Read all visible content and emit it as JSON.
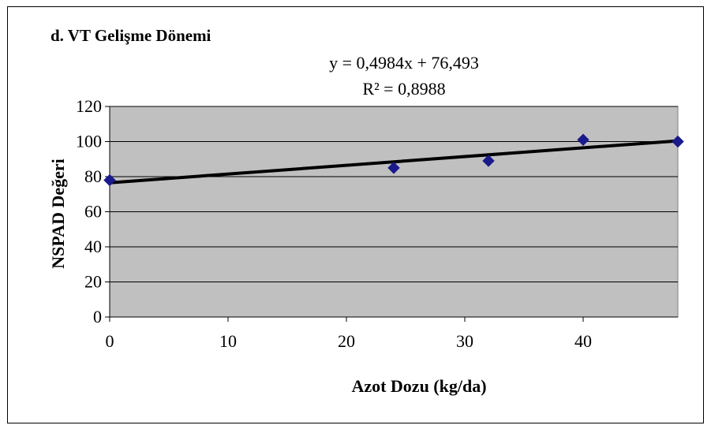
{
  "chart_data": {
    "type": "scatter",
    "title": "d. VT Gelişme Dönemi",
    "xlabel": "Azot Dozu (kg/da)",
    "ylabel": "NSPAD Değeri",
    "xlim": [
      0,
      48
    ],
    "ylim": [
      0,
      120
    ],
    "x_ticks": [
      "0",
      "10",
      "20",
      "30",
      "40"
    ],
    "y_ticks": [
      "0",
      "20",
      "40",
      "60",
      "80",
      "100",
      "120"
    ],
    "grid": "horizontal",
    "series": [
      {
        "x": [
          0,
          24,
          32,
          40,
          48
        ],
        "y": [
          78,
          85,
          89,
          101,
          100
        ],
        "marker": "diamond",
        "color": "#1a1a8c"
      }
    ],
    "trendline": {
      "type": "linear",
      "slope": 0.4984,
      "intercept": 76.493,
      "equation_label": "y = 0,4984x + 76,493",
      "r2_label": "R² = 0,8988",
      "color": "#000000"
    },
    "plot_background": "#c0c0c0",
    "gridline_color": "#000000"
  }
}
